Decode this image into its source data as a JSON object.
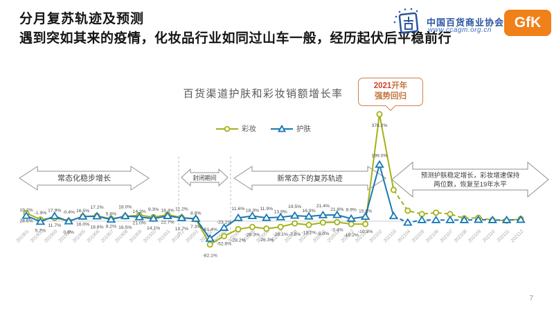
{
  "slide": {
    "title": "分月复苏轨迹及预测",
    "subtitle": "遇到突如其来的疫情，化妆品行业如同过山车一般，经历起伏后平稳前行",
    "page_number": "7"
  },
  "logos": {
    "association_name": "中国百货商业协会",
    "association_url": "www.ccagm.org.cn",
    "association_color": "#2b55a2",
    "gfk_label": "GfK",
    "gfk_color": "#f08019"
  },
  "annotations": {
    "callout": {
      "year": "2021",
      "line1_rest": "开年",
      "line2": "强势回归",
      "border_color": "#cf7f4e",
      "year_color": "#d0432a",
      "text_color": "#c4763c"
    },
    "phases": [
      {
        "id": "steady-growth",
        "lines": [
          "常态化稳步增长"
        ]
      },
      {
        "id": "lockdown",
        "lines": [
          "封闭期间"
        ]
      },
      {
        "id": "recovery",
        "lines": [
          "新常态下的复苏轨迹"
        ]
      },
      {
        "id": "forecast",
        "lines": [
          "预测护肤稳定增长，彩妆增速保持",
          "两位数，恢复至19年水平"
        ]
      }
    ]
  },
  "chart_data": {
    "type": "line",
    "title": "百货渠道护肤和彩妆销额增长率",
    "xlabel": "",
    "ylabel": "",
    "ylim": [
      -100,
      400
    ],
    "grid": false,
    "legend_position": "top-center",
    "zero_line": true,
    "forecast_start_index": 26,
    "x": [
      "201901",
      "201902",
      "201903",
      "201904",
      "201905",
      "201906",
      "201907",
      "201908",
      "201909",
      "201910",
      "201911",
      "201912",
      "202001",
      "202002",
      "202003",
      "202004",
      "202005",
      "202006",
      "202007",
      "202008",
      "202009",
      "202010",
      "202011",
      "202012",
      "202101",
      "202102",
      "202103",
      "202104",
      "202105",
      "202106",
      "202107",
      "202108",
      "202109",
      "202110",
      "202111",
      "202112"
    ],
    "series": [
      {
        "id": "makeup",
        "name": "彩妆",
        "color": "#a4b116",
        "marker": "circle",
        "label_position": "below",
        "values": [
          28.6,
          5.7,
          11.7,
          0.6,
          16.0,
          18.8,
          8.2,
          16.5,
          21.0,
          14.1,
          22.7,
          12.7,
          7.3,
          -82.1,
          -52.6,
          -28.2,
          -20.3,
          -26.3,
          -20.1,
          -7.8,
          -13.2,
          -5.0,
          -3.4,
          -10.2,
          -10.3,
          376.2,
          110,
          37,
          25,
          30,
          25,
          10,
          12,
          4,
          2,
          8
        ],
        "labels": [
          "28.6%",
          "5.7%",
          "11.7%",
          "0.6%",
          "16.0%",
          "18.8%",
          "8.2%",
          "16.5%",
          "21.0%",
          "14.1%",
          "22.7%",
          "12.7%",
          "7.3%",
          "-82.1%",
          "-52.6%",
          "-28.2%",
          "-20.3%",
          "-26.3%",
          "-20.1%",
          "-7.8%",
          "-13.2%",
          "-5.0%",
          "-3.4%",
          "-10.2%",
          "-10.3%",
          "376.2%",
          "",
          "",
          "",
          "",
          "",
          "",
          "",
          "",
          "",
          ""
        ]
      },
      {
        "id": "skincare",
        "name": "护肤",
        "color": "#1878b4",
        "marker": "triangle",
        "label_position": "above",
        "values": [
          19.2,
          -1.9,
          17.9,
          -0.4,
          16.5,
          17.2,
          5.8,
          18.0,
          14.3,
          9.3,
          18.4,
          11.2,
          8.8,
          -61.4,
          -23.1,
          11.6,
          18.3,
          11.9,
          13.9,
          19.5,
          16.9,
          21.4,
          21.8,
          8.9,
          15.8,
          199.0,
          18,
          -5,
          4,
          4,
          4,
          4,
          5,
          4,
          4,
          5
        ],
        "labels": [
          "19.2%",
          "-1.9%",
          "17.9%",
          "-0.4%",
          "16.5%",
          "17.2%",
          "5.8%",
          "18.0%",
          "14.3%",
          "9.3%",
          "18.4%",
          "11.2%",
          "8.8%",
          "-61.4%",
          "-23.1%",
          "11.6%",
          "18.3%",
          "11.9%",
          "13.9%",
          "19.5%",
          "16.9%",
          "21.4%",
          "21.8%",
          "8.9%",
          "15.8%",
          "199.0%",
          "",
          "",
          "",
          "",
          "",
          "",
          "",
          "",
          "",
          ""
        ]
      }
    ]
  }
}
